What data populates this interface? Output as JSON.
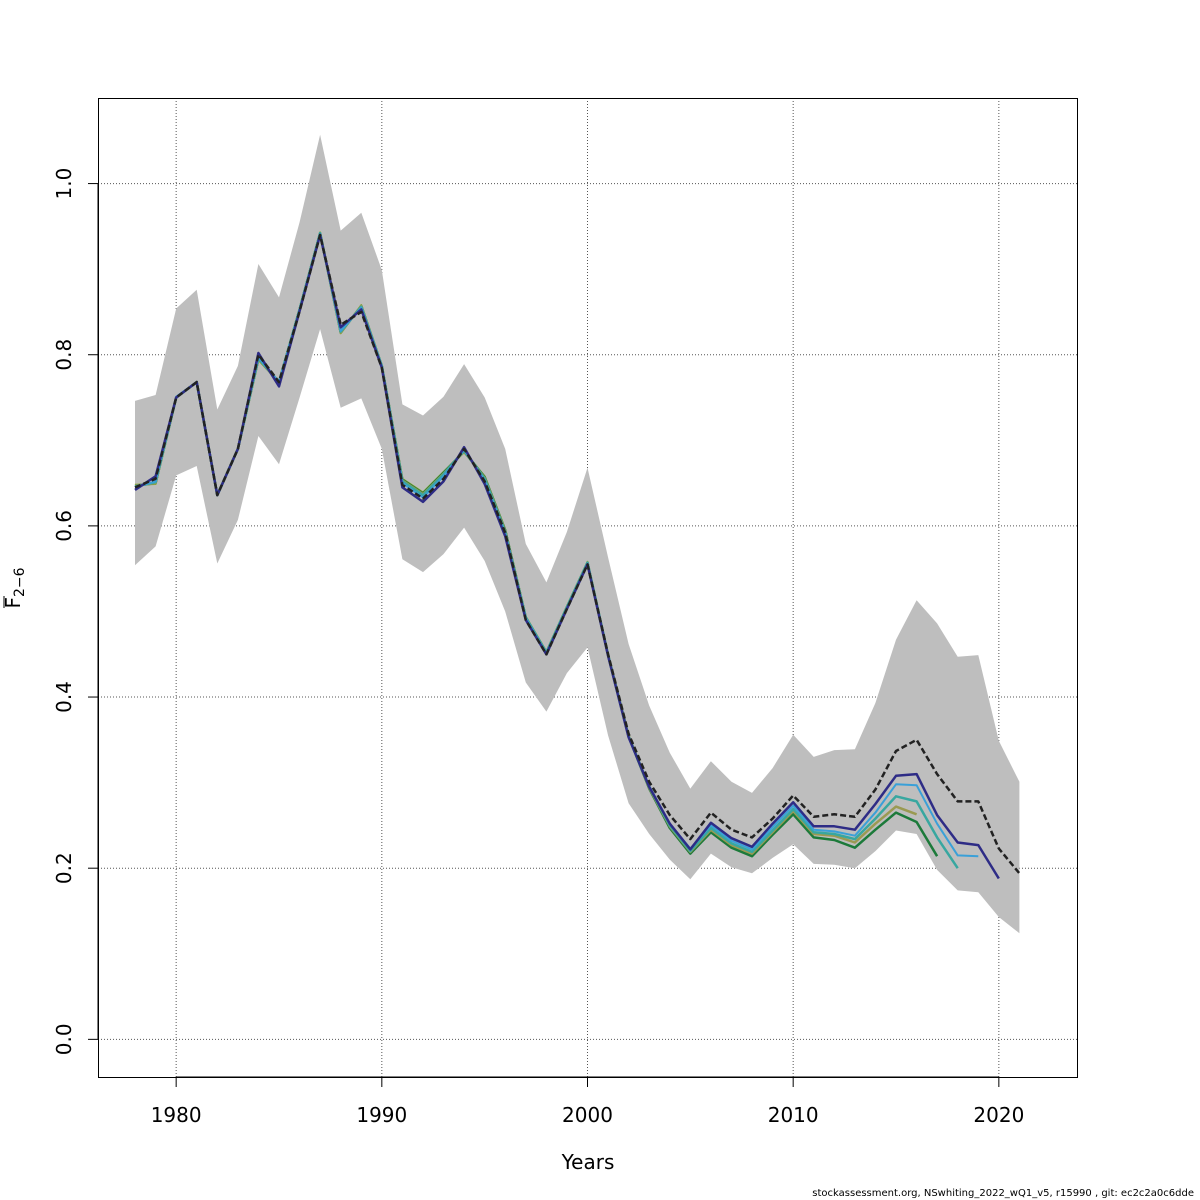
{
  "chart_data": {
    "type": "line",
    "title": "",
    "xlabel": "Years",
    "ylabel_main": "F",
    "ylabel_sub": "2−6",
    "xlim": [
      1976.2,
      2023.8
    ],
    "ylim": [
      -0.044,
      1.1
    ],
    "xticks": [
      1980,
      1990,
      2000,
      2010,
      2020
    ],
    "yticks": [
      0.0,
      0.2,
      0.4,
      0.6,
      0.8,
      1.0
    ],
    "ytick_labels": [
      "0.0",
      "0.2",
      "0.4",
      "0.6",
      "0.8",
      "1.0"
    ],
    "xtick_labels": [
      "1980",
      "1990",
      "2000",
      "2010",
      "2020"
    ],
    "grid": true,
    "band_color": "#bebebe",
    "confidence_band": {
      "x": [
        1978,
        1979,
        1980,
        1981,
        1982,
        1983,
        1984,
        1985,
        1986,
        1987,
        1988,
        1989,
        1990,
        1991,
        1992,
        1993,
        1994,
        1995,
        1996,
        1997,
        1998,
        1999,
        2000,
        2001,
        2002,
        2003,
        2004,
        2005,
        2006,
        2007,
        2008,
        2009,
        2010,
        2011,
        2012,
        2013,
        2014,
        2015,
        2016,
        2017,
        2018,
        2019,
        2020,
        2021
      ],
      "lower": [
        0.554,
        0.576,
        0.659,
        0.67,
        0.556,
        0.607,
        0.705,
        0.672,
        0.75,
        0.83,
        0.738,
        0.749,
        0.69,
        0.561,
        0.546,
        0.567,
        0.598,
        0.559,
        0.5,
        0.417,
        0.383,
        0.428,
        0.458,
        0.355,
        0.276,
        0.24,
        0.21,
        0.187,
        0.217,
        0.201,
        0.194,
        0.212,
        0.228,
        0.205,
        0.204,
        0.2,
        0.22,
        0.244,
        0.24,
        0.198,
        0.174,
        0.172,
        0.143,
        0.124
      ],
      "upper": [
        0.746,
        0.753,
        0.854,
        0.876,
        0.736,
        0.787,
        0.906,
        0.867,
        0.955,
        1.057,
        0.945,
        0.966,
        0.899,
        0.742,
        0.729,
        0.751,
        0.789,
        0.75,
        0.69,
        0.579,
        0.534,
        0.593,
        0.668,
        0.563,
        0.462,
        0.39,
        0.335,
        0.293,
        0.325,
        0.301,
        0.288,
        0.317,
        0.356,
        0.33,
        0.338,
        0.339,
        0.393,
        0.467,
        0.513,
        0.486,
        0.447,
        0.449,
        0.349,
        0.301
      ]
    },
    "series": [
      {
        "color": "#222222",
        "width": 2.5,
        "dash": "6,3",
        "x": [
          1978,
          1979,
          1980,
          1981,
          1982,
          1983,
          1984,
          1985,
          1986,
          1987,
          1988,
          1989,
          1990,
          1991,
          1992,
          1993,
          1994,
          1995,
          1996,
          1997,
          1998,
          1999,
          2000,
          2001,
          2002,
          2003,
          2004,
          2005,
          2006,
          2007,
          2008,
          2009,
          2010,
          2011,
          2012,
          2013,
          2014,
          2015,
          2016,
          2017,
          2018,
          2019,
          2020,
          2021
        ],
        "values": [
          0.645,
          0.655,
          0.75,
          0.768,
          0.636,
          0.69,
          0.8,
          0.768,
          0.851,
          0.94,
          0.835,
          0.85,
          0.785,
          0.648,
          0.632,
          0.655,
          0.69,
          0.652,
          0.592,
          0.49,
          0.45,
          0.503,
          0.555,
          0.45,
          0.357,
          0.301,
          0.262,
          0.234,
          0.265,
          0.245,
          0.236,
          0.258,
          0.285,
          0.26,
          0.263,
          0.26,
          0.292,
          0.337,
          0.35,
          0.31,
          0.278,
          0.278,
          0.223,
          0.194
        ]
      },
      {
        "color": "#2e2c86",
        "width": 2.5,
        "x": [
          1978,
          1979,
          1980,
          1981,
          1982,
          1983,
          1984,
          1985,
          1986,
          1987,
          1988,
          1989,
          1990,
          1991,
          1992,
          1993,
          1994,
          1995,
          1996,
          1997,
          1998,
          1999,
          2000,
          2001,
          2002,
          2003,
          2004,
          2005,
          2006,
          2007,
          2008,
          2009,
          2010,
          2011,
          2012,
          2013,
          2014,
          2015,
          2016,
          2017,
          2018,
          2019,
          2020
        ],
        "values": [
          0.642,
          0.658,
          0.75,
          0.768,
          0.636,
          0.69,
          0.802,
          0.763,
          0.851,
          0.94,
          0.832,
          0.853,
          0.785,
          0.645,
          0.628,
          0.652,
          0.692,
          0.649,
          0.588,
          0.49,
          0.45,
          0.503,
          0.555,
          0.448,
          0.353,
          0.295,
          0.252,
          0.222,
          0.253,
          0.235,
          0.225,
          0.252,
          0.277,
          0.249,
          0.249,
          0.245,
          0.275,
          0.308,
          0.31,
          0.262,
          0.23,
          0.227,
          0.188
        ]
      },
      {
        "color": "#3aa0d8",
        "width": 2,
        "x": [
          1978,
          1979,
          1980,
          1981,
          1982,
          1983,
          1984,
          1985,
          1986,
          1987,
          1988,
          1989,
          1990,
          1991,
          1992,
          1993,
          1994,
          1995,
          1996,
          1997,
          1998,
          1999,
          2000,
          2001,
          2002,
          2003,
          2004,
          2005,
          2006,
          2007,
          2008,
          2009,
          2010,
          2011,
          2012,
          2013,
          2014,
          2015,
          2016,
          2017,
          2018,
          2019
        ],
        "values": [
          0.645,
          0.652,
          0.751,
          0.768,
          0.636,
          0.69,
          0.797,
          0.768,
          0.853,
          0.941,
          0.828,
          0.855,
          0.787,
          0.65,
          0.633,
          0.658,
          0.689,
          0.653,
          0.591,
          0.492,
          0.451,
          0.504,
          0.556,
          0.449,
          0.354,
          0.296,
          0.252,
          0.223,
          0.25,
          0.232,
          0.222,
          0.248,
          0.273,
          0.245,
          0.243,
          0.238,
          0.265,
          0.298,
          0.297,
          0.252,
          0.215,
          0.214
        ]
      },
      {
        "color": "#38a7a0",
        "width": 2.5,
        "x": [
          1978,
          1979,
          1980,
          1981,
          1982,
          1983,
          1984,
          1985,
          1986,
          1987,
          1988,
          1989,
          1990,
          1991,
          1992,
          1993,
          1994,
          1995,
          1996,
          1997,
          1998,
          1999,
          2000,
          2001,
          2002,
          2003,
          2004,
          2005,
          2006,
          2007,
          2008,
          2009,
          2010,
          2011,
          2012,
          2013,
          2014,
          2015,
          2016,
          2017,
          2018
        ],
        "values": [
          0.646,
          0.651,
          0.75,
          0.768,
          0.636,
          0.69,
          0.796,
          0.768,
          0.853,
          0.942,
          0.827,
          0.856,
          0.787,
          0.652,
          0.636,
          0.66,
          0.688,
          0.655,
          0.593,
          0.493,
          0.452,
          0.505,
          0.557,
          0.449,
          0.354,
          0.295,
          0.25,
          0.22,
          0.247,
          0.229,
          0.219,
          0.244,
          0.269,
          0.242,
          0.24,
          0.234,
          0.258,
          0.284,
          0.278,
          0.236,
          0.2
        ]
      },
      {
        "color": "#9a9a52",
        "width": 2.5,
        "x": [
          1978,
          1979,
          1980,
          1981,
          1982,
          1983,
          1984,
          1985,
          1986,
          1987,
          1988,
          1989,
          1990,
          1991,
          1992,
          1993,
          1994,
          1995,
          1996,
          1997,
          1998,
          1999,
          2000,
          2001,
          2002,
          2003,
          2004,
          2005,
          2006,
          2007,
          2008,
          2009,
          2010,
          2011,
          2012,
          2013,
          2014,
          2015,
          2016
        ],
        "values": [
          0.647,
          0.65,
          0.75,
          0.768,
          0.636,
          0.69,
          0.795,
          0.768,
          0.853,
          0.942,
          0.826,
          0.857,
          0.787,
          0.653,
          0.637,
          0.661,
          0.687,
          0.656,
          0.594,
          0.493,
          0.452,
          0.505,
          0.557,
          0.449,
          0.355,
          0.294,
          0.249,
          0.219,
          0.245,
          0.227,
          0.217,
          0.242,
          0.267,
          0.24,
          0.238,
          0.23,
          0.252,
          0.272,
          0.263
        ]
      },
      {
        "color": "#1c7a3a",
        "width": 2.5,
        "x": [
          1978,
          1979,
          1980,
          1981,
          1982,
          1983,
          1984,
          1985,
          1986,
          1987,
          1988,
          1989,
          1990,
          1991,
          1992,
          1993,
          1994,
          1995,
          1996,
          1997,
          1998,
          1999,
          2000,
          2001,
          2002,
          2003,
          2004,
          2005,
          2006,
          2007,
          2008,
          2009,
          2010,
          2011,
          2012,
          2013,
          2014,
          2015,
          2016,
          2017
        ],
        "values": [
          0.647,
          0.65,
          0.75,
          0.768,
          0.636,
          0.69,
          0.795,
          0.768,
          0.853,
          0.942,
          0.826,
          0.857,
          0.787,
          0.654,
          0.638,
          0.662,
          0.687,
          0.657,
          0.595,
          0.493,
          0.452,
          0.505,
          0.557,
          0.449,
          0.354,
          0.293,
          0.247,
          0.217,
          0.242,
          0.224,
          0.214,
          0.239,
          0.263,
          0.236,
          0.233,
          0.224,
          0.245,
          0.265,
          0.254,
          0.214
        ]
      },
      {
        "color": "#8fb030",
        "width": 2,
        "x": [
          1978,
          1979,
          1980,
          1981,
          1982,
          1983,
          1984,
          1985,
          1986,
          1987,
          1988,
          1989,
          1990,
          1991,
          1992,
          1993,
          1994,
          1995,
          1996,
          1997,
          1998,
          1999,
          2000,
          2001,
          2002,
          2003,
          2004,
          2005
        ],
        "values": [
          0.648,
          0.649,
          0.75,
          0.768,
          0.636,
          0.69,
          0.794,
          0.768,
          0.853,
          0.943,
          0.825,
          0.858,
          0.788,
          0.655,
          0.639,
          0.663,
          0.686,
          0.658,
          0.596,
          0.494,
          0.453,
          0.506,
          0.558,
          0.45,
          0.355,
          0.293,
          0.247,
          0.218
        ]
      }
    ]
  },
  "footer_text": "stockassessment.org, NSwhiting_2022_wQ1_v5, r15990 , git: ec2c2a0c6dde"
}
